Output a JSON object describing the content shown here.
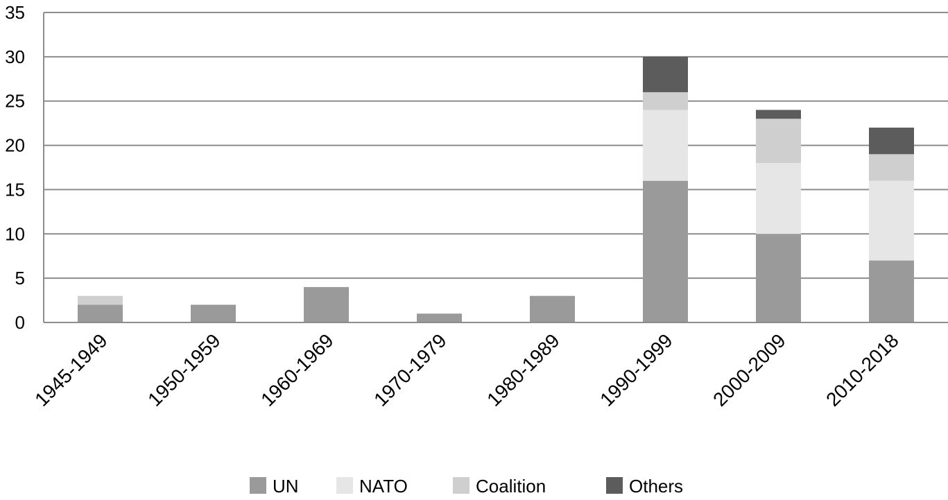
{
  "chart_data": {
    "type": "bar",
    "stacked": true,
    "categories": [
      "1945-1949",
      "1950-1959",
      "1960-1969",
      "1970-1979",
      "1980-1989",
      "1990-1999",
      "2000-2009",
      "2010-2018"
    ],
    "series": [
      {
        "name": "UN",
        "color": "#9a9a9a",
        "values": [
          2,
          2,
          4,
          1,
          3,
          16,
          10,
          7
        ]
      },
      {
        "name": "NATO",
        "color": "#e6e6e6",
        "values": [
          0,
          0,
          0,
          0,
          0,
          8,
          8,
          9
        ]
      },
      {
        "name": "Coalition",
        "color": "#cfcfcf",
        "values": [
          1,
          0,
          0,
          0,
          0,
          2,
          5,
          3
        ]
      },
      {
        "name": "Others",
        "color": "#5c5c5c",
        "values": [
          0,
          0,
          0,
          0,
          0,
          4,
          1,
          3
        ]
      }
    ],
    "yticks": [
      "0",
      "5",
      "10",
      "15",
      "20",
      "25",
      "30",
      "35"
    ],
    "ylim": [
      0,
      35
    ],
    "title": "",
    "xlabel": "",
    "ylabel": "",
    "grid": true,
    "legend_position": "bottom"
  }
}
